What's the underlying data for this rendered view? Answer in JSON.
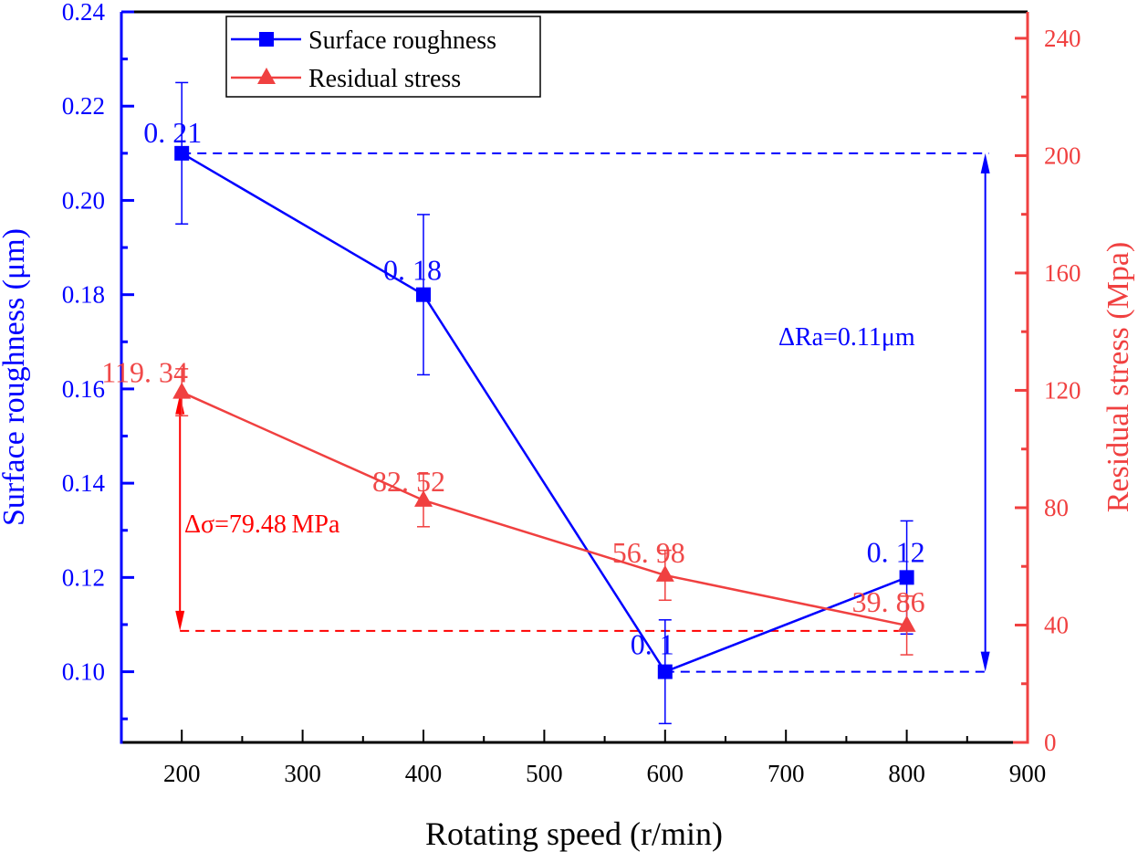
{
  "chart_data": {
    "type": "line",
    "title": "",
    "xlabel": "Rotating speed (r/min)",
    "ylabel_left": "Surface roughness (μm)",
    "ylabel_right": "Residual stress (Mpa)",
    "xlim": [
      150,
      900
    ],
    "ylim_left": [
      0.085,
      0.24
    ],
    "ylim_right": [
      0,
      249
    ],
    "x_ticks": [
      200,
      300,
      400,
      500,
      600,
      700,
      800,
      900
    ],
    "x_tick_labels": [
      "200",
      "300",
      "400",
      "500",
      "600",
      "700",
      "800",
      "900"
    ],
    "y_left_ticks": [
      0.1,
      0.12,
      0.14,
      0.16,
      0.18,
      0.2,
      0.22,
      0.24
    ],
    "y_left_tick_labels": [
      "0.10",
      "0.12",
      "0.14",
      "0.16",
      "0.18",
      "0.20",
      "0.22",
      "0.24"
    ],
    "y_right_ticks": [
      0,
      40,
      80,
      120,
      160,
      200,
      240
    ],
    "y_right_tick_labels": [
      "0",
      "40",
      "80",
      "120",
      "160",
      "200",
      "240"
    ],
    "grid": false,
    "legend_position": "top-left",
    "x": [
      200,
      400,
      600,
      800
    ],
    "series": [
      {
        "name": "Surface roughness",
        "axis": "left",
        "marker": "square",
        "color": "#0000ff",
        "values": [
          0.21,
          0.18,
          0.1,
          0.12
        ],
        "errors": [
          0.015,
          0.017,
          0.011,
          0.012
        ],
        "data_labels": [
          "0. 21",
          "0. 18",
          "0. 1",
          "0. 12"
        ]
      },
      {
        "name": "Residual stress",
        "axis": "right",
        "marker": "triangle",
        "color": "#f04040",
        "values": [
          119.34,
          82.52,
          56.98,
          39.86
        ],
        "errors": [
          8,
          9,
          8.5,
          10
        ],
        "data_labels": [
          "119. 34",
          "82. 52",
          "56. 98",
          "39. 86"
        ]
      }
    ],
    "annotations": [
      {
        "text": "ΔRa=0.11μm",
        "color": "#0000ff",
        "from": 0.21,
        "to": 0.1,
        "axis": "left",
        "x": 865
      },
      {
        "text": "Δσ=79.48 MPa",
        "color": "#ff0000",
        "from": 119.34,
        "to": 39.86,
        "axis": "right",
        "x": 200
      }
    ],
    "colors": {
      "left_axis": "#0000ff",
      "right_axis": "#f04040",
      "bottom_axis": "#000000"
    }
  }
}
